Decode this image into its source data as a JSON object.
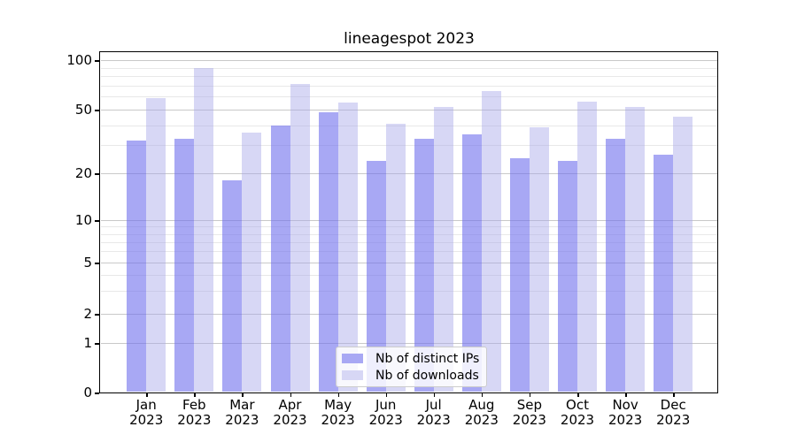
{
  "title": "lineagespot 2023",
  "chart_data": {
    "type": "bar",
    "title": "lineagespot 2023",
    "x_axis": {
      "months": [
        "Jan",
        "Feb",
        "Mar",
        "Apr",
        "May",
        "Jun",
        "Jul",
        "Aug",
        "Sep",
        "Oct",
        "Nov",
        "Dec"
      ],
      "year": "2023"
    },
    "y_axis": {
      "scale": "log-like",
      "ticks": [
        0,
        1,
        2,
        5,
        10,
        20,
        50,
        100
      ],
      "minor_gridlines": [
        3,
        4,
        6,
        7,
        8,
        9,
        30,
        40,
        60,
        70,
        80,
        90
      ]
    },
    "series": [
      {
        "name": "Nb of distinct IPs",
        "color": "#a8a8f4",
        "fill": "rgba(110,110,237,0.6)",
        "values": [
          32,
          33,
          18,
          40,
          48,
          24,
          33,
          35,
          25,
          24,
          33,
          26
        ]
      },
      {
        "name": "Nb of downloads",
        "color": "#d7d7f5",
        "fill": "rgba(166,166,233,0.45)",
        "values": [
          59,
          90,
          36,
          72,
          55,
          41,
          52,
          65,
          39,
          56,
          52,
          45
        ]
      }
    ],
    "legend": {
      "position": "lower center",
      "entries": [
        "Nb of distinct IPs",
        "Nb of downloads"
      ]
    },
    "grid": true,
    "colors": {
      "major_gridline": "#c9c9c9",
      "minor_gridline": "#e8e8e8",
      "axis": "#000000",
      "background": "#ffffff"
    }
  }
}
